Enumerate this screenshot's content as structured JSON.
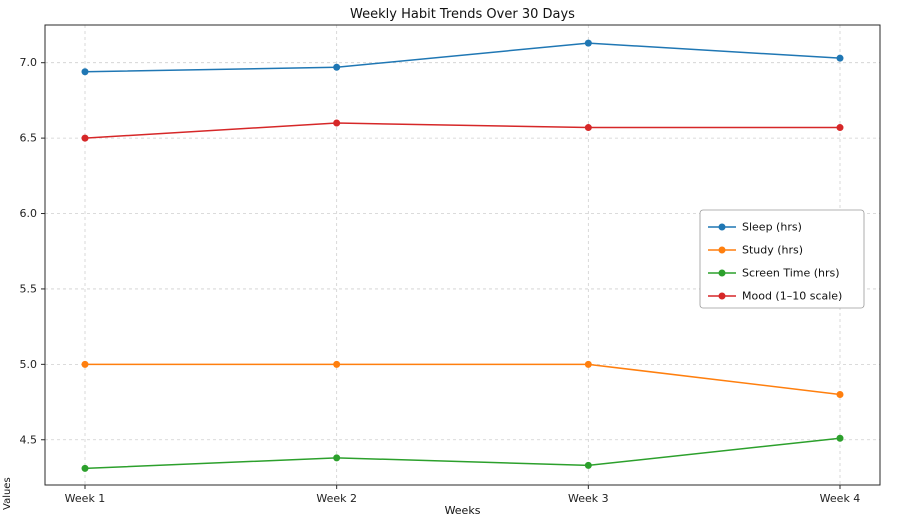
{
  "chart_data": {
    "type": "line",
    "title": "Weekly Habit Trends Over 30 Days",
    "xlabel": "Weeks",
    "ylabel": "Values",
    "categories": [
      "Week 1",
      "Week 2",
      "Week 3",
      "Week 4"
    ],
    "series": [
      {
        "name": "Sleep (hrs)",
        "color": "#1f77b4",
        "values": [
          6.94,
          6.97,
          7.13,
          7.03
        ]
      },
      {
        "name": "Study (hrs)",
        "color": "#ff7f0e",
        "values": [
          5.0,
          5.0,
          5.0,
          4.8
        ]
      },
      {
        "name": "Screen Time (hrs)",
        "color": "#2ca02c",
        "values": [
          4.31,
          4.38,
          4.33,
          4.51
        ]
      },
      {
        "name": "Mood (1–10 scale)",
        "color": "#d62728",
        "values": [
          6.5,
          6.6,
          6.57,
          6.57
        ]
      }
    ],
    "yticks": [
      4.5,
      5.0,
      5.5,
      6.0,
      6.5,
      7.0
    ],
    "ylim": [
      4.2,
      7.25
    ],
    "grid": true,
    "legend_position": "center-right",
    "colors": {
      "grid": "#cfcfcf",
      "spine": "#2a2a2a",
      "tick_text": "#222222",
      "legend_border": "#9a9a9a"
    }
  }
}
